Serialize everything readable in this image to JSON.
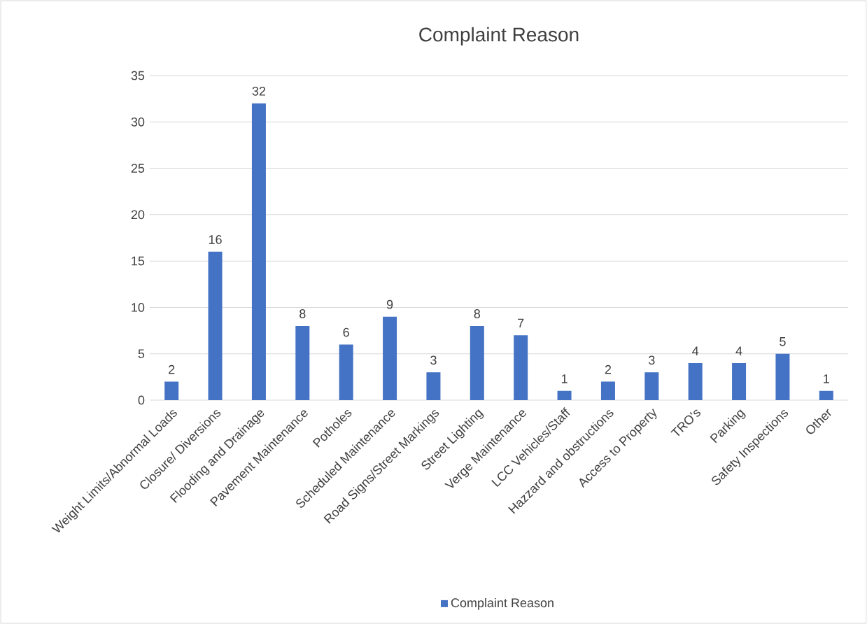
{
  "chart_data": {
    "type": "bar",
    "title": "Complaint Reason",
    "categories": [
      "Weight Limits/Abnormal Loads",
      "Closure/ Diversions",
      "Flooding and Drainage",
      "Pavement Maintenance",
      "Potholes",
      "Scheduled Maintenance",
      "Road Signs/Street Markings",
      "Street Lighting",
      "Verge Maintenance",
      "LCC Vehicles/Staff",
      "Hazzard and obstructions",
      "Access to Property",
      "TRO's",
      "Parking",
      "Safety Inspections",
      "Other"
    ],
    "series": [
      {
        "name": "Complaint Reason",
        "color": "#4472c4",
        "values": [
          2,
          16,
          32,
          8,
          6,
          9,
          3,
          8,
          7,
          1,
          2,
          3,
          4,
          4,
          5,
          1
        ]
      }
    ],
    "ylim": [
      0,
      35
    ],
    "yticks": [
      0,
      5,
      10,
      15,
      20,
      25,
      30,
      35
    ],
    "grid": "y",
    "legend": "bottom",
    "data_labels": true
  }
}
